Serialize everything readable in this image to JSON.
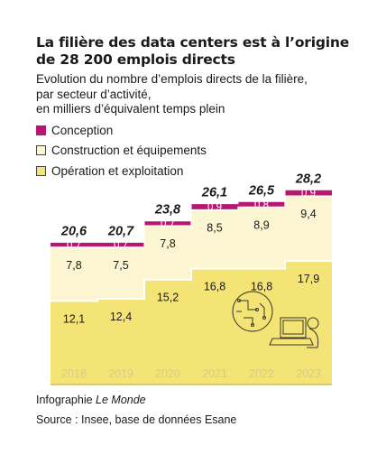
{
  "title_line1": "La filière des data centers est à l’origine",
  "title_line2": "de 28 200 emplois directs",
  "subtitle_line1": "Evolution du nombre d’emplois directs de la filière,",
  "subtitle_line2": "par secteur d’activité,",
  "subtitle_line3": "en milliers d’équivalent temps plein",
  "legend": [
    {
      "label": "Conception",
      "color": "#b8176f",
      "border": "#b8176f"
    },
    {
      "label": "Construction et équipements",
      "color": "#fbf5d2",
      "border": "#444444"
    },
    {
      "label": "Opération et exploitation",
      "color": "#f4e375",
      "border": "#444444"
    }
  ],
  "footer": {
    "credit_prefix": "Infographie ",
    "credit_brand": "Le Monde",
    "source": "Source : Insee, base de données Esane"
  },
  "chart_data": {
    "type": "area",
    "stacked": true,
    "step": true,
    "categories": [
      "2018",
      "2019",
      "2020",
      "2021",
      "2022",
      "2023"
    ],
    "series": [
      {
        "name": "Opération et exploitation",
        "values": [
          "12,1",
          "12,4",
          "15,2",
          "16,8",
          "16,8",
          "17,9"
        ],
        "color": "#f4e375"
      },
      {
        "name": "Construction et équipements",
        "values": [
          "7,8",
          "7,5",
          "7,8",
          "8,5",
          "8,9",
          "9,4"
        ],
        "color": "#fbf5d2"
      },
      {
        "name": "Conception",
        "values": [
          "0,7",
          "0,7",
          "0,7",
          "0,9",
          "0,8",
          "0,9"
        ],
        "color": "#b8176f"
      }
    ],
    "totals": [
      "20,6",
      "20,7",
      "23,8",
      "26,1",
      "26,5",
      "28,2"
    ]
  }
}
